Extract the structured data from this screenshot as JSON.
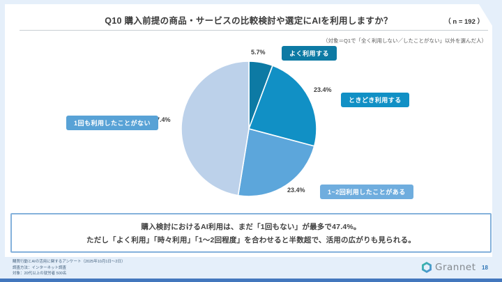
{
  "slide": {
    "title": "Q10 購入前提の商品・サービスの比較検討や選定にAIを利用しますか？",
    "sample_size": "（ n = 192 ）",
    "note": "（対象＝Q1で「全く利用しない／したことがない」以外を選んだ人）"
  },
  "chart_data": {
    "type": "pie",
    "title": "Q10 購入前提の商品・サービスの比較検討や選定にAIを利用しますか？",
    "n": 192,
    "start_angle_deg": 0,
    "direction": "clockwise",
    "legend_position": "around-pie",
    "slices": [
      {
        "label": "よく利用する",
        "value": 5.7,
        "display": "5.7%",
        "color": "#0D7AA4",
        "badge_color": "#0D7AA4"
      },
      {
        "label": "ときどき利用する",
        "value": 23.4,
        "display": "23.4%",
        "color": "#1190C5",
        "badge_color": "#1190C5"
      },
      {
        "label": "1~2回利用したことがある",
        "value": 23.4,
        "display": "23.4%",
        "color": "#5CA6DB",
        "badge_color": "#6FADDE"
      },
      {
        "label": "1回も利用したことがない",
        "value": 47.4,
        "display": "47.4%",
        "color": "#BCD1EA",
        "badge_color": "#58A2D6"
      }
    ]
  },
  "callout": {
    "line1": "購入検討におけるAI利用は、まだ「1回もない」が最多で47.4%。",
    "line2": "ただし「よく利用」「時々利用」「1～2回程度」を合わせると半数超で、活用の広がりも見られる。"
  },
  "footer": {
    "lines": [
      "購買行動とAIの活用に関するアンケート（2025年10月1日～2日）",
      "調査方法：インターネット調査",
      "対象：20代以上の就労者 500名"
    ],
    "logo_text": "Grannet",
    "page_number": "18"
  },
  "colors": {
    "background": "#E5EFFA",
    "card": "#FFFFFF",
    "callout_border": "#84B1DB",
    "bottom_bar": "#4377BD",
    "page_number": "#2E74B5",
    "logo_teal": "#35B7A7",
    "logo_blue": "#4E8FD6"
  }
}
